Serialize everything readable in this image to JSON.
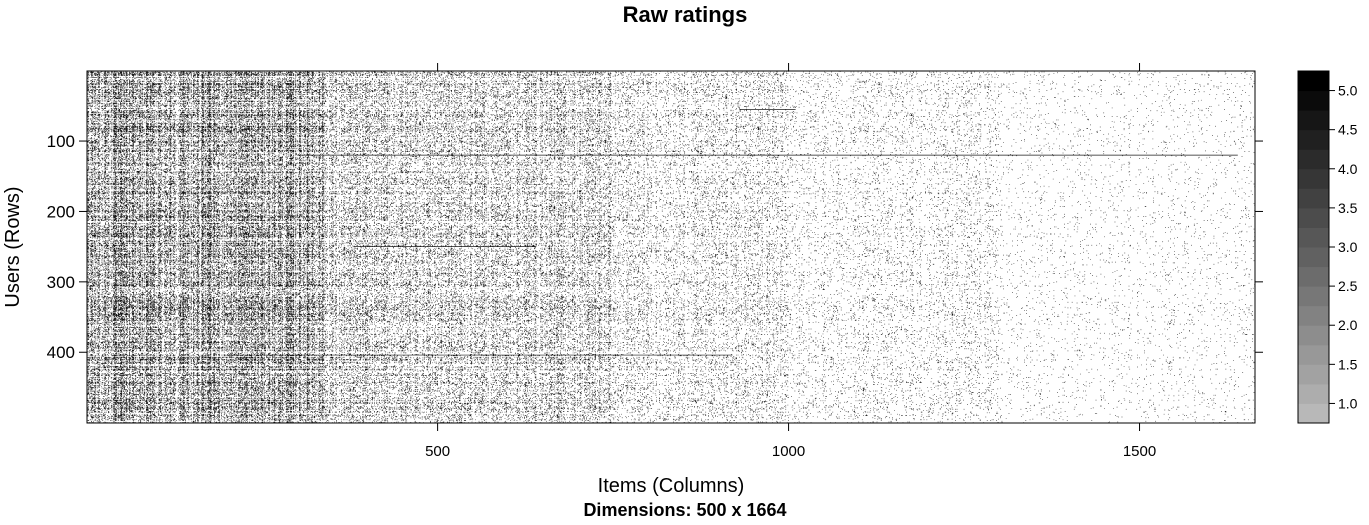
{
  "chart_data": {
    "type": "heatmap",
    "title": "Raw ratings",
    "xlabel": "Items (Columns)",
    "ylabel": "Users (Rows)",
    "subtitle": "Dimensions: 500 x 1664",
    "rows": 500,
    "columns": 1664,
    "xlim": [
      1,
      1664
    ],
    "ylim": [
      1,
      500
    ],
    "x_ticks": [
      500,
      1000,
      1500
    ],
    "x_tick_labels": [
      "500",
      "1000",
      "1500"
    ],
    "y_ticks": [
      100,
      200,
      300,
      400
    ],
    "y_tick_labels": [
      "100",
      "200",
      "300",
      "400"
    ],
    "y_axis_reversed": true,
    "legend": {
      "position": "right",
      "levels": [
        1.0,
        1.5,
        2.0,
        2.5,
        3.0,
        3.5,
        4.0,
        4.5,
        5.0
      ],
      "labels": [
        "1.0",
        "1.5",
        "2.0",
        "2.5",
        "3.0",
        "3.5",
        "4.0",
        "4.5",
        "5.0"
      ],
      "range": [
        0.75,
        5.25
      ],
      "color_low": "#b8b8b8",
      "color_high": "#000000"
    },
    "cell_color": "#1a1a1a",
    "background_color": "#ffffff"
  }
}
